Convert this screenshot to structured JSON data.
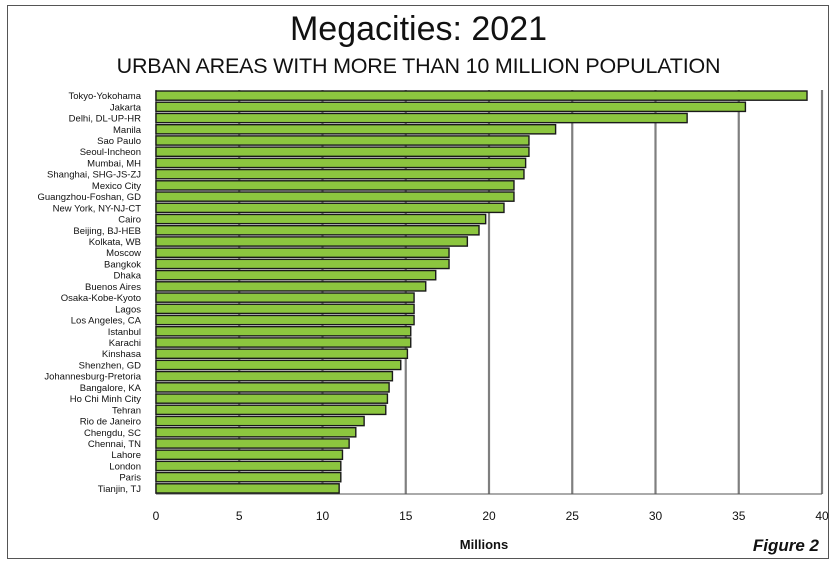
{
  "chart_data": {
    "type": "bar",
    "orientation": "horizontal",
    "title": "Megacities: 2021",
    "subtitle": "URBAN AREAS WITH MORE THAN 10 MILLION POPULATION",
    "xlabel": "Millions",
    "xlim": [
      0,
      40
    ],
    "xticks": [
      "0",
      "5",
      "10",
      "15",
      "20",
      "25",
      "30",
      "35",
      "40"
    ],
    "grid": "vertical",
    "bar_color": "#8cc63f",
    "bar_edge_color": "#1a1a1a",
    "grid_color": "#7f7f7f",
    "categories": [
      "Tokyo-Yokohama",
      "Jakarta",
      "Delhi, DL-UP-HR",
      "Manila",
      "Sao Paulo",
      "Seoul-Incheon",
      "Mumbai, MH",
      "Shanghai, SHG-JS-ZJ",
      "Mexico City",
      "Guangzhou-Foshan, GD",
      "New York, NY-NJ-CT",
      "Cairo",
      "Beijing, BJ-HEB",
      "Kolkata, WB",
      "Moscow",
      "Bangkok",
      "Dhaka",
      "Buenos Aires",
      "Osaka-Kobe-Kyoto",
      "Lagos",
      "Los Angeles, CA",
      "Istanbul",
      "Karachi",
      "Kinshasa",
      "Shenzhen, GD",
      "Johannesburg-Pretoria",
      "Bangalore, KA",
      "Ho Chi Minh City",
      "Tehran",
      "Rio de Janeiro",
      "Chengdu, SC",
      "Chennai, TN",
      "Lahore",
      "London",
      "Paris",
      "Tianjin, TJ"
    ],
    "values": [
      39.1,
      35.4,
      31.9,
      24.0,
      22.4,
      22.4,
      22.2,
      22.1,
      21.5,
      21.5,
      20.9,
      19.8,
      19.4,
      18.7,
      17.6,
      17.6,
      16.8,
      16.2,
      15.5,
      15.5,
      15.5,
      15.3,
      15.3,
      15.1,
      14.7,
      14.2,
      14.0,
      13.9,
      13.8,
      12.5,
      12.0,
      11.6,
      11.2,
      11.1,
      11.1,
      11.0
    ]
  },
  "figure_label": "Figure 2"
}
